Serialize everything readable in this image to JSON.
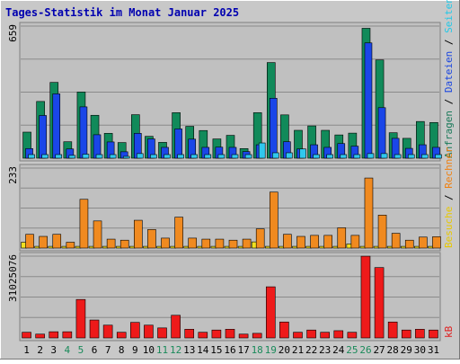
{
  "chart_data": {
    "type": "bar",
    "title": "Tages-Statistik im Monat Januar 2025",
    "categories": [
      "1",
      "2",
      "3",
      "4",
      "5",
      "6",
      "7",
      "8",
      "9",
      "10",
      "11",
      "12",
      "13",
      "14",
      "15",
      "16",
      "17",
      "18",
      "19",
      "20",
      "21",
      "22",
      "23",
      "24",
      "25",
      "26",
      "27",
      "28",
      "29",
      "30",
      "31"
    ],
    "weekend_days": [
      "4",
      "5",
      "11",
      "12",
      "18",
      "19",
      "25",
      "26"
    ],
    "panels": [
      {
        "id": "top",
        "ymax_label": "659",
        "ylim": [
          0,
          659
        ],
        "right_labels": [
          {
            "text": "Anfragen",
            "color": "#1a7a5a"
          },
          {
            "text": " / ",
            "color": "#000000"
          },
          {
            "text": "Dateien",
            "color": "#1a46e0"
          },
          {
            "text": " / ",
            "color": "#000000"
          },
          {
            "text": "Seiten",
            "color": "#22c8e8"
          }
        ],
        "series": [
          {
            "name": "Anfragen",
            "color": "#118a5a",
            "values": [
              130,
              283,
              378,
              82,
              330,
              214,
              124,
              78,
              217,
              109,
              79,
              227,
              159,
              138,
              96,
              114,
              48,
              227,
              477,
              216,
              139,
              161,
              139,
              116,
              125,
              648,
              490,
              127,
              99,
              183,
              178
            ]
          },
          {
            "name": "Dateien",
            "color": "#1a46e8",
            "values": [
              48,
              213,
              321,
              46,
              256,
              117,
              81,
              32,
              124,
              96,
              54,
              146,
              95,
              54,
              55,
              54,
              33,
              67,
              299,
              82,
              46,
              67,
              54,
              73,
              60,
              575,
              252,
              99,
              49,
              67,
              54
            ]
          },
          {
            "name": "Seiten",
            "color": "#30c8ee",
            "values": [
              18,
              18,
              18,
              14,
              20,
              18,
              18,
              9,
              23,
              18,
              18,
              18,
              18,
              18,
              18,
              18,
              18,
              76,
              27,
              27,
              46,
              18,
              18,
              18,
              18,
              23,
              23,
              18,
              18,
              18,
              18
            ]
          }
        ]
      },
      {
        "id": "middle",
        "ymax_label": "233",
        "ylim": [
          0,
          233
        ],
        "right_labels": [
          {
            "text": "Besuche",
            "color": "#e8c800"
          },
          {
            "text": " / ",
            "color": "#000000"
          },
          {
            "text": "Rechner",
            "color": "#f08010"
          }
        ],
        "series": [
          {
            "name": "Besuche",
            "color": "#f0e020",
            "values": [
              17,
              5,
              5,
              5,
              5,
              5,
              5,
              5,
              5,
              5,
              5,
              5,
              5,
              5,
              5,
              5,
              5,
              18,
              5,
              5,
              5,
              5,
              5,
              5,
              12,
              5,
              5,
              5,
              5,
              5,
              5
            ]
          },
          {
            "name": "Rechner",
            "color": "#f08a20",
            "values": [
              40,
              34,
              40,
              17,
              142,
              79,
              26,
              23,
              81,
              54,
              29,
              90,
              29,
              26,
              26,
              23,
              26,
              56,
              163,
              40,
              34,
              37,
              37,
              59,
              37,
              204,
              96,
              43,
              23,
              32,
              33
            ]
          }
        ]
      },
      {
        "id": "bottom",
        "ymax_label": "31025076",
        "ylim": [
          0,
          31025076
        ],
        "right_labels": [
          {
            "text": "kB",
            "color": "#e02020"
          }
        ],
        "series": [
          {
            "name": "kB",
            "color": "#ee1a1a",
            "values": [
              2150000,
              1450000,
              2350000,
              2350000,
              14600000,
              6800000,
              4850000,
              2150000,
              5900000,
              4850000,
              3800000,
              8600000,
              3300000,
              2150000,
              3000000,
              3300000,
              1450000,
              1750000,
              19400000,
              6050000,
              2150000,
              3000000,
              2150000,
              2750000,
              2150000,
              31000000,
              26700000,
              6050000,
              3000000,
              3300000,
              3000000
            ]
          }
        ]
      }
    ]
  }
}
